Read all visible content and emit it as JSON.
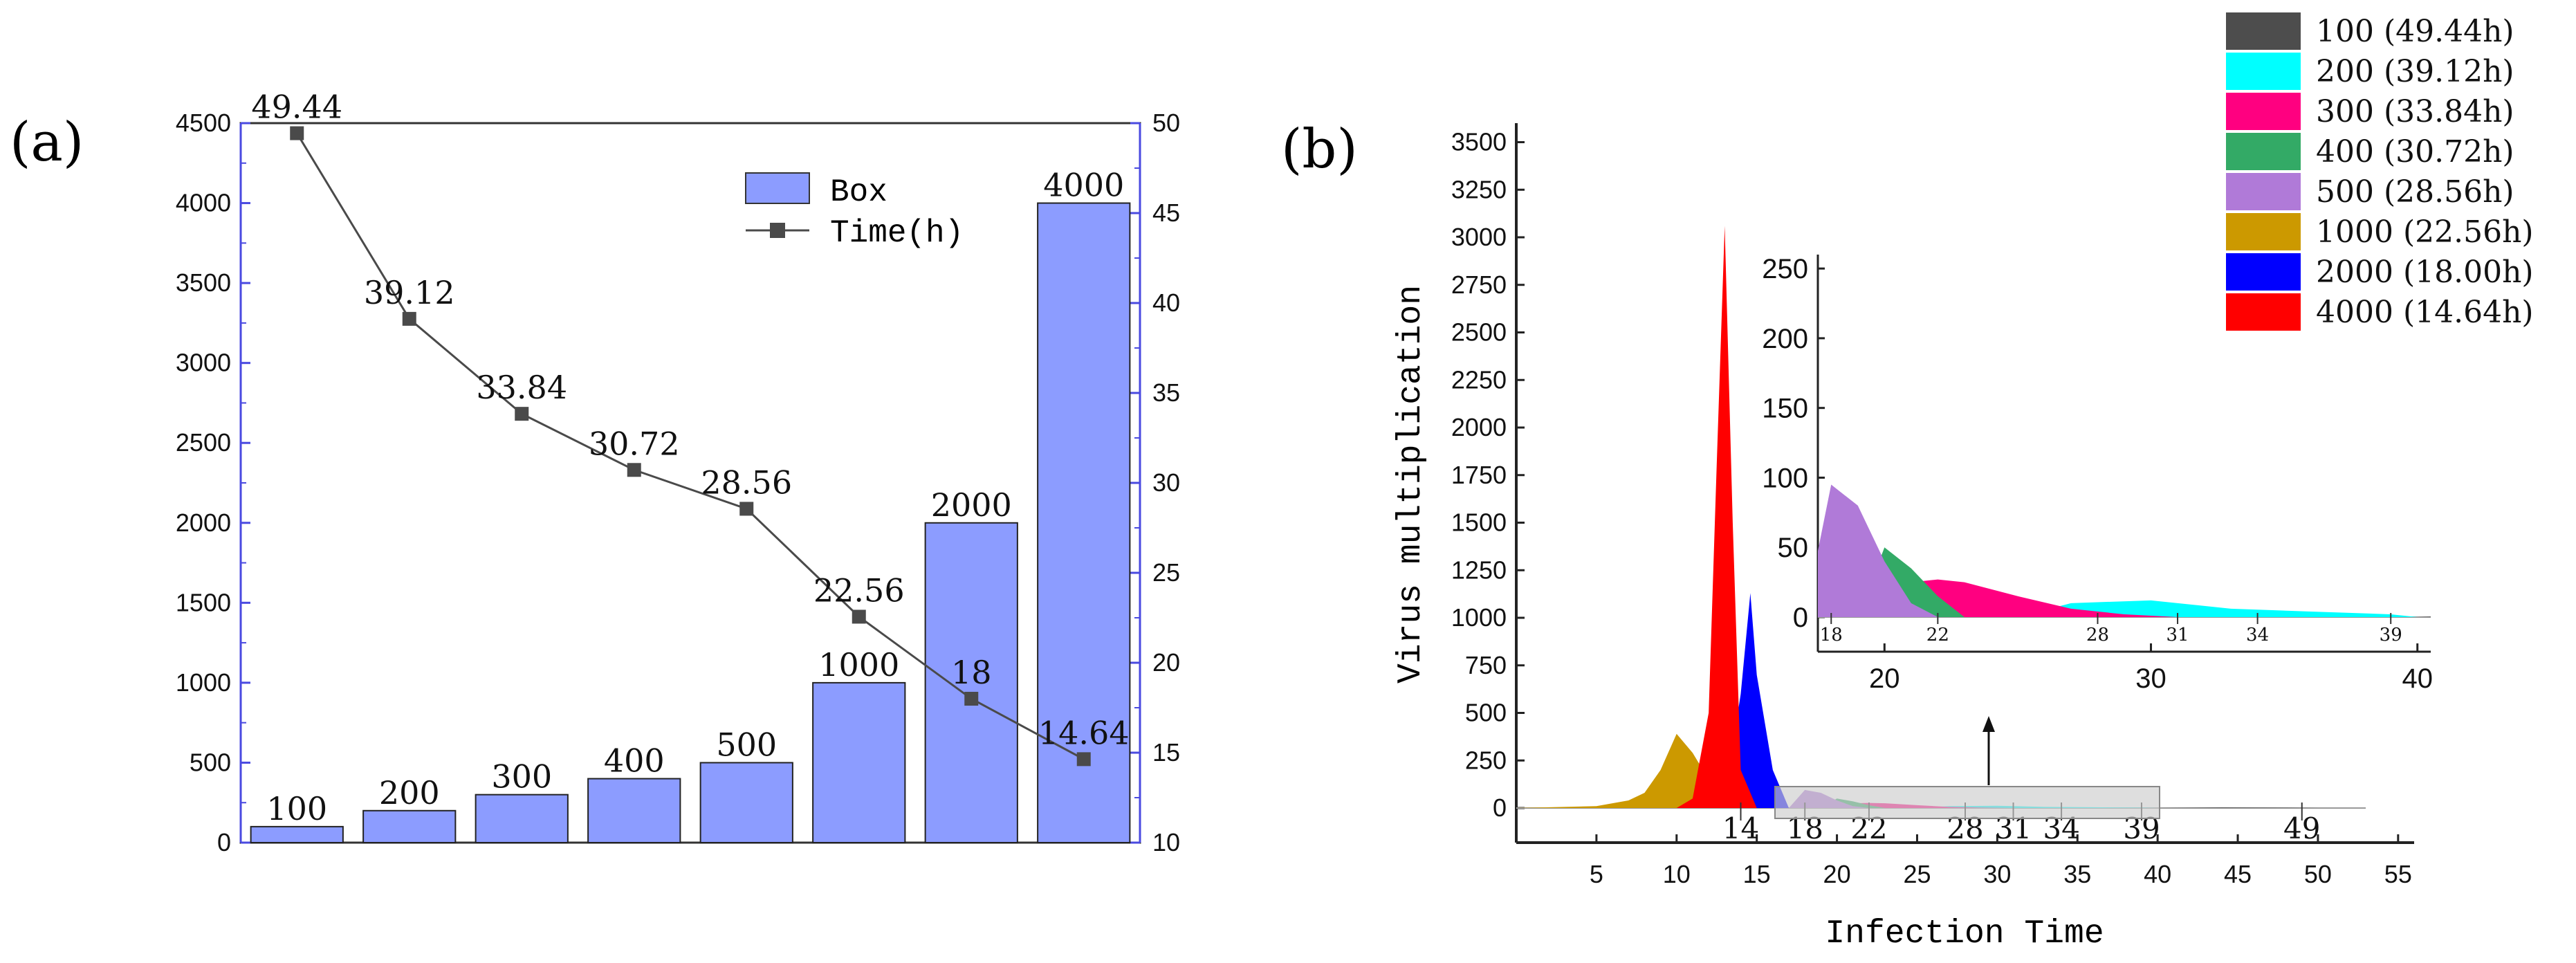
{
  "panel_a": {
    "label": "(a)",
    "legend": {
      "box": "Box",
      "time": "Time(h)"
    },
    "chart_data": {
      "type": "bar",
      "categories": [
        "100",
        "200",
        "300",
        "400",
        "500",
        "1000",
        "2000",
        "4000"
      ],
      "series": [
        {
          "name": "Box",
          "axis": "left",
          "values": [
            100,
            200,
            300,
            400,
            500,
            1000,
            2000,
            4000
          ],
          "labels": [
            "100",
            "200",
            "300",
            "400",
            "500",
            "1000",
            "2000",
            "4000"
          ],
          "color": "#8c9cff"
        },
        {
          "name": "Time(h)",
          "axis": "right",
          "type": "line",
          "values": [
            49.44,
            39.12,
            33.84,
            30.72,
            28.56,
            22.56,
            18,
            14.64
          ],
          "labels": [
            "49.44",
            "39.12",
            "33.84",
            "30.72",
            "28.56",
            "22.56",
            "18",
            "14.64"
          ],
          "color": "#4a4a4a"
        }
      ],
      "ylim_left": [
        0,
        4500
      ],
      "ylim_right": [
        10,
        50
      ],
      "yticks_left": [
        "0",
        "500",
        "1000",
        "1500",
        "2000",
        "2500",
        "3000",
        "3500",
        "4000",
        "4500"
      ],
      "yticks_right": [
        "10",
        "15",
        "20",
        "25",
        "30",
        "35",
        "40",
        "45",
        "50"
      ]
    }
  },
  "panel_b": {
    "label": "(b)",
    "chart_data": {
      "type": "area",
      "xlabel": "Infection Time",
      "ylabel": "Virus multiplication",
      "xlim": [
        0,
        56
      ],
      "ylim": [
        0,
        3600
      ],
      "xticks": [
        "5",
        "10",
        "15",
        "20",
        "25",
        "30",
        "35",
        "40",
        "45",
        "50",
        "55"
      ],
      "yticks": [
        "0",
        "250",
        "500",
        "750",
        "1000",
        "1250",
        "1500",
        "1750",
        "2000",
        "2250",
        "2500",
        "2750",
        "3000",
        "3250",
        "3500"
      ],
      "annotated_times": [
        "14",
        "18",
        "22",
        "28",
        "31",
        "34",
        "39",
        "49"
      ],
      "legend": [
        {
          "label": "100 (49.44h)",
          "color": "#4d4d4d"
        },
        {
          "label": "200 (39.12h)",
          "color": "#00ffff"
        },
        {
          "label": "300 (33.84h)",
          "color": "#ff0080"
        },
        {
          "label": "400 (30.72h)",
          "color": "#33aa66"
        },
        {
          "label": "500 (28.56h)",
          "color": "#b07ad8"
        },
        {
          "label": "1000 (22.56h)",
          "color": "#cc9900"
        },
        {
          "label": "2000 (18.00h)",
          "color": "#0000ff"
        },
        {
          "label": "4000 (14.64h)",
          "color": "#ff0000"
        }
      ],
      "series": [
        {
          "name": "100",
          "x": [
            40,
            44,
            48,
            50
          ],
          "y": [
            0,
            3,
            2,
            0
          ]
        },
        {
          "name": "200",
          "x": [
            25,
            27,
            30,
            33,
            36,
            39,
            40
          ],
          "y": [
            0,
            10,
            12,
            6,
            4,
            2,
            0
          ]
        },
        {
          "name": "300",
          "x": [
            20,
            21,
            22,
            23,
            25,
            27,
            29,
            31
          ],
          "y": [
            0,
            25,
            27,
            25,
            15,
            6,
            2,
            0
          ]
        },
        {
          "name": "400",
          "x": [
            19,
            20,
            21,
            22,
            23
          ],
          "y": [
            0,
            50,
            35,
            15,
            0
          ]
        },
        {
          "name": "500",
          "x": [
            17,
            18,
            19,
            20,
            21,
            22
          ],
          "y": [
            0,
            95,
            80,
            40,
            10,
            0
          ]
        },
        {
          "name": "1000",
          "x": [
            0,
            5,
            7,
            8,
            9,
            10,
            11,
            12,
            13,
            14,
            15
          ],
          "y": [
            0,
            10,
            40,
            80,
            200,
            390,
            290,
            150,
            80,
            20,
            0
          ]
        },
        {
          "name": "2000",
          "x": [
            12,
            13,
            14,
            14.6,
            15,
            16,
            17
          ],
          "y": [
            0,
            50,
            600,
            1130,
            700,
            200,
            0
          ]
        },
        {
          "name": "4000",
          "x": [
            10,
            11,
            12,
            12.5,
            13,
            13.5,
            14,
            15
          ],
          "y": [
            0,
            50,
            500,
            1800,
            3060,
            1500,
            200,
            0
          ]
        }
      ],
      "inset": {
        "xlim": [
          17.5,
          40.5
        ],
        "ylim": [
          0,
          260
        ],
        "xticks": [
          "20",
          "30",
          "40"
        ],
        "yticks": [
          "0",
          "50",
          "100",
          "150",
          "200",
          "250"
        ],
        "annotated_times": [
          "18",
          "22",
          "28",
          "31",
          "34",
          "39"
        ]
      }
    }
  }
}
